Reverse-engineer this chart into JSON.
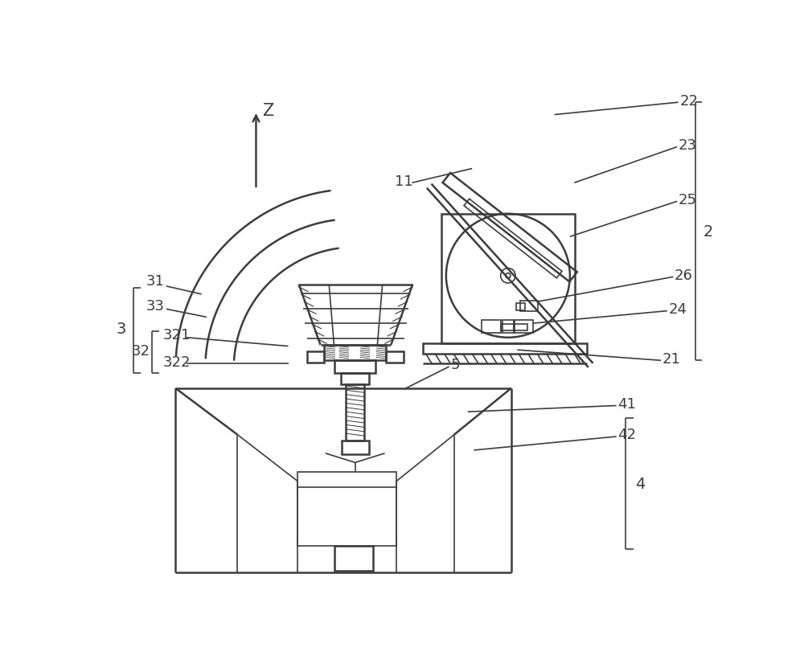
{
  "bg": "#ffffff",
  "lc": "#3c3c3c",
  "lw": 1.2,
  "lw2": 1.8,
  "fs": 13
}
